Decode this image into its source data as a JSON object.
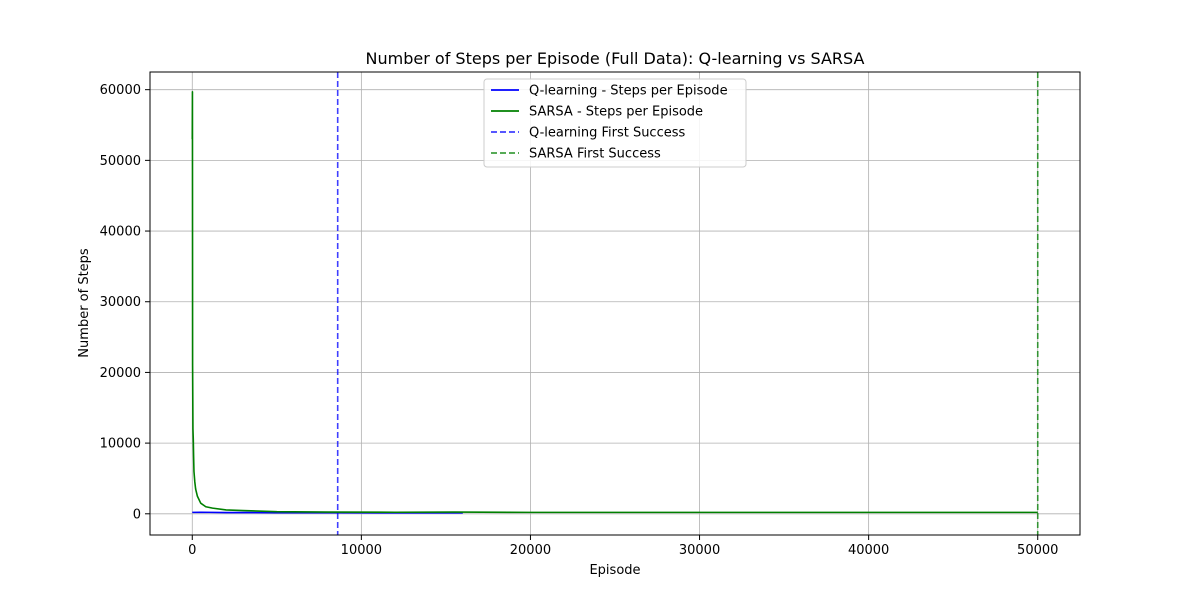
{
  "chart_data": {
    "type": "line",
    "title": "Number of Steps per Episode (Full Data): Q-learning vs SARSA",
    "xlabel": "Episode",
    "ylabel": "Number of Steps",
    "xlim": [
      -2500,
      52500
    ],
    "ylim": [
      -3000,
      62500
    ],
    "xticks": [
      0,
      10000,
      20000,
      30000,
      40000,
      50000
    ],
    "xtick_labels": [
      "0",
      "10000",
      "20000",
      "30000",
      "40000",
      "50000"
    ],
    "yticks": [
      0,
      10000,
      20000,
      30000,
      40000,
      50000,
      60000
    ],
    "ytick_labels": [
      "0",
      "10000",
      "20000",
      "30000",
      "40000",
      "50000",
      "60000"
    ],
    "grid": true,
    "legend_position": "top-center",
    "series": [
      {
        "name": "Q-learning - Steps per Episode",
        "color": "#0000ff",
        "style": "solid",
        "x": [
          0,
          500,
          2000,
          5000,
          8600,
          12000,
          16000
        ],
        "y": [
          200,
          220,
          180,
          160,
          150,
          140,
          130
        ]
      },
      {
        "name": "SARSA - Steps per Episode",
        "color": "#008000",
        "style": "solid",
        "x": [
          0,
          10,
          20,
          40,
          60,
          80,
          100,
          150,
          200,
          300,
          500,
          800,
          1200,
          2000,
          3000,
          5000,
          8000,
          12000,
          15500,
          20000,
          30000,
          40000,
          50000
        ],
        "y": [
          53000,
          59700,
          21000,
          12000,
          10500,
          8000,
          6000,
          4500,
          3500,
          2500,
          1500,
          1000,
          800,
          550,
          450,
          300,
          250,
          220,
          250,
          200,
          200,
          200,
          200
        ]
      }
    ],
    "vlines": [
      {
        "name": "Q-learning First Success",
        "x": 8600,
        "color": "#0000ff",
        "style": "dashed"
      },
      {
        "name": "SARSA First Success",
        "x": 50000,
        "color": "#008000",
        "style": "dashed"
      }
    ]
  }
}
